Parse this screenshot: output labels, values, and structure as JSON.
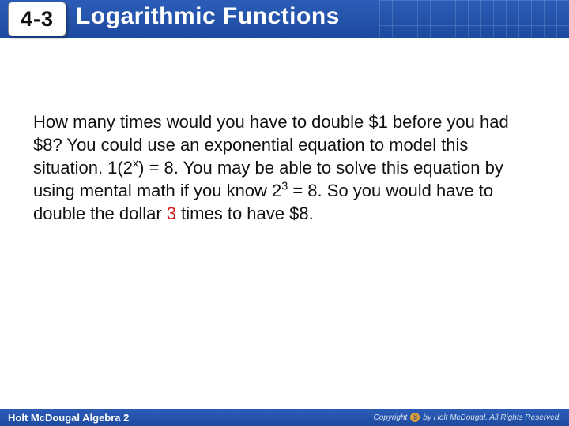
{
  "header": {
    "section_number": "4-3",
    "title": "Logarithmic Functions",
    "bg_gradient_top": "#2b5db8",
    "bg_gradient_bottom": "#1e4a9e",
    "title_color": "#ffffff",
    "title_fontsize": 30,
    "badge_bg": "#ffffff",
    "badge_fontsize": 27
  },
  "body": {
    "text_part1": "How many times would you have to double $1 before you had $8? You could use an exponential equation to model this situation. 1(2",
    "exp1": "x",
    "text_part2": ") = 8. You may be able to solve this equation by using mental math if you know 2",
    "exp2": "3",
    "text_part3": " = 8. So you would have to double the dollar ",
    "highlight": "3",
    "text_part4": " times to have $8.",
    "text_color": "#111111",
    "highlight_color": "#d02020",
    "fontsize": 22
  },
  "footer": {
    "left": "Holt McDougal Algebra 2",
    "right_prefix": "Copyright",
    "right_suffix": "by Holt McDougal. All Rights Reserved.",
    "bg_gradient_top": "#2b5db8",
    "bg_gradient_bottom": "#1e4a9e",
    "text_color": "#ffffff"
  }
}
